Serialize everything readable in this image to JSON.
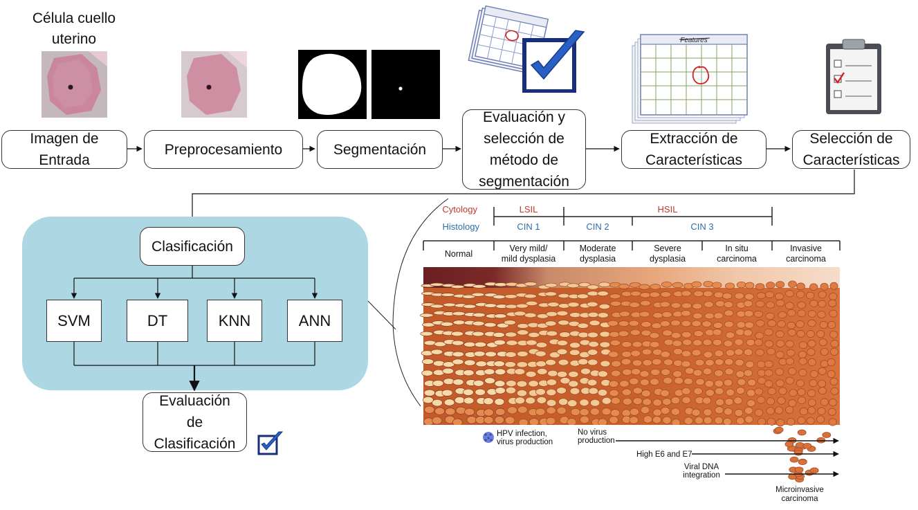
{
  "pipeline": {
    "input_caption": "Célula cuello\nuterino",
    "steps": [
      "Imagen de\nEntrada",
      "Preprocesamiento",
      "Segmentación",
      "Evaluación y\nselección  de\nmétodo de\nsegmentación",
      "Extracción de\nCaracterísticas",
      "Selección de\nCaracterísticas"
    ],
    "features_calendar_title": "Features"
  },
  "classification": {
    "title": "Clasificación",
    "methods": [
      "SVM",
      "DT",
      "KNN",
      "ANN"
    ],
    "evaluation": "Evaluación\nde\nClasificación"
  },
  "progression": {
    "row_labels": {
      "cytology": "Cytology",
      "histology": "Histology"
    },
    "cytology": [
      "LSIL",
      "HSIL"
    ],
    "histology": [
      "CIN 1",
      "CIN 2",
      "CIN 3"
    ],
    "stages": [
      "Normal",
      "Very mild/\nmild dysplasia",
      "Moderate\ndysplasia",
      "Severe\ndysplasia",
      "In situ\ncarcinoma",
      "Invasive\ncarcinoma"
    ],
    "events": [
      "HPV infection,\nvirus production",
      "No virus\nproduction",
      "High E6 and E7",
      "Viral DNA\nintegration",
      "Microinvasive\ncarcinoma"
    ]
  },
  "colors": {
    "panel": "#add8e3",
    "cell_pink": "#c9869c",
    "check_blue": "#1a3c8c",
    "cytology_red": "#c0392b",
    "histology_blue": "#2e6da4",
    "tissue_dark": "#6b1f22",
    "tissue_orange": "#d9713b"
  }
}
